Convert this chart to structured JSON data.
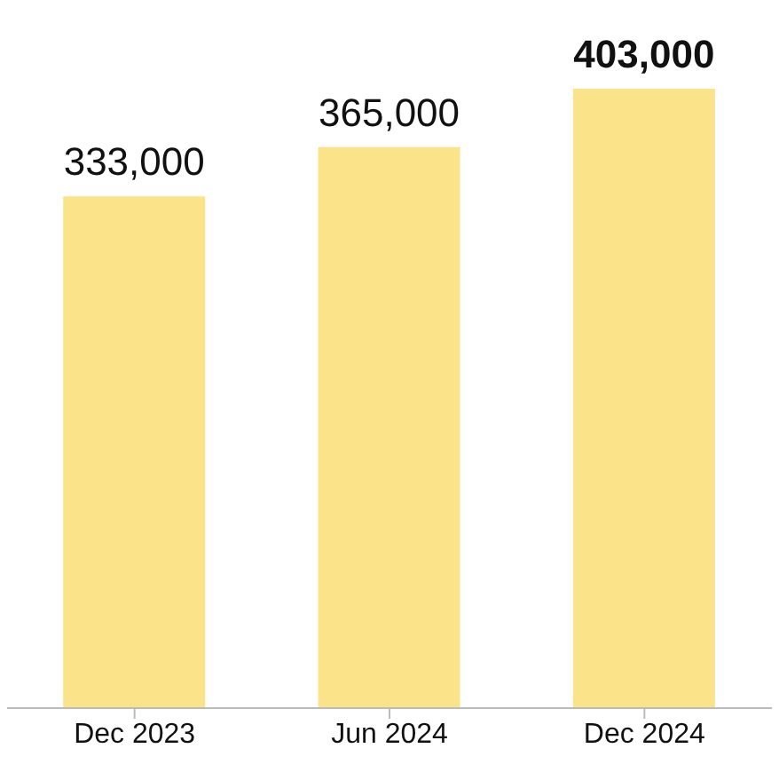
{
  "chart_data": {
    "type": "bar",
    "categories": [
      "Dec 2023",
      "Jun 2024",
      "Dec 2024"
    ],
    "values": [
      333000,
      365000,
      403000
    ],
    "color": "#fbe38a",
    "value_labels": [
      "333,000",
      "365,000",
      "403,000"
    ]
  }
}
